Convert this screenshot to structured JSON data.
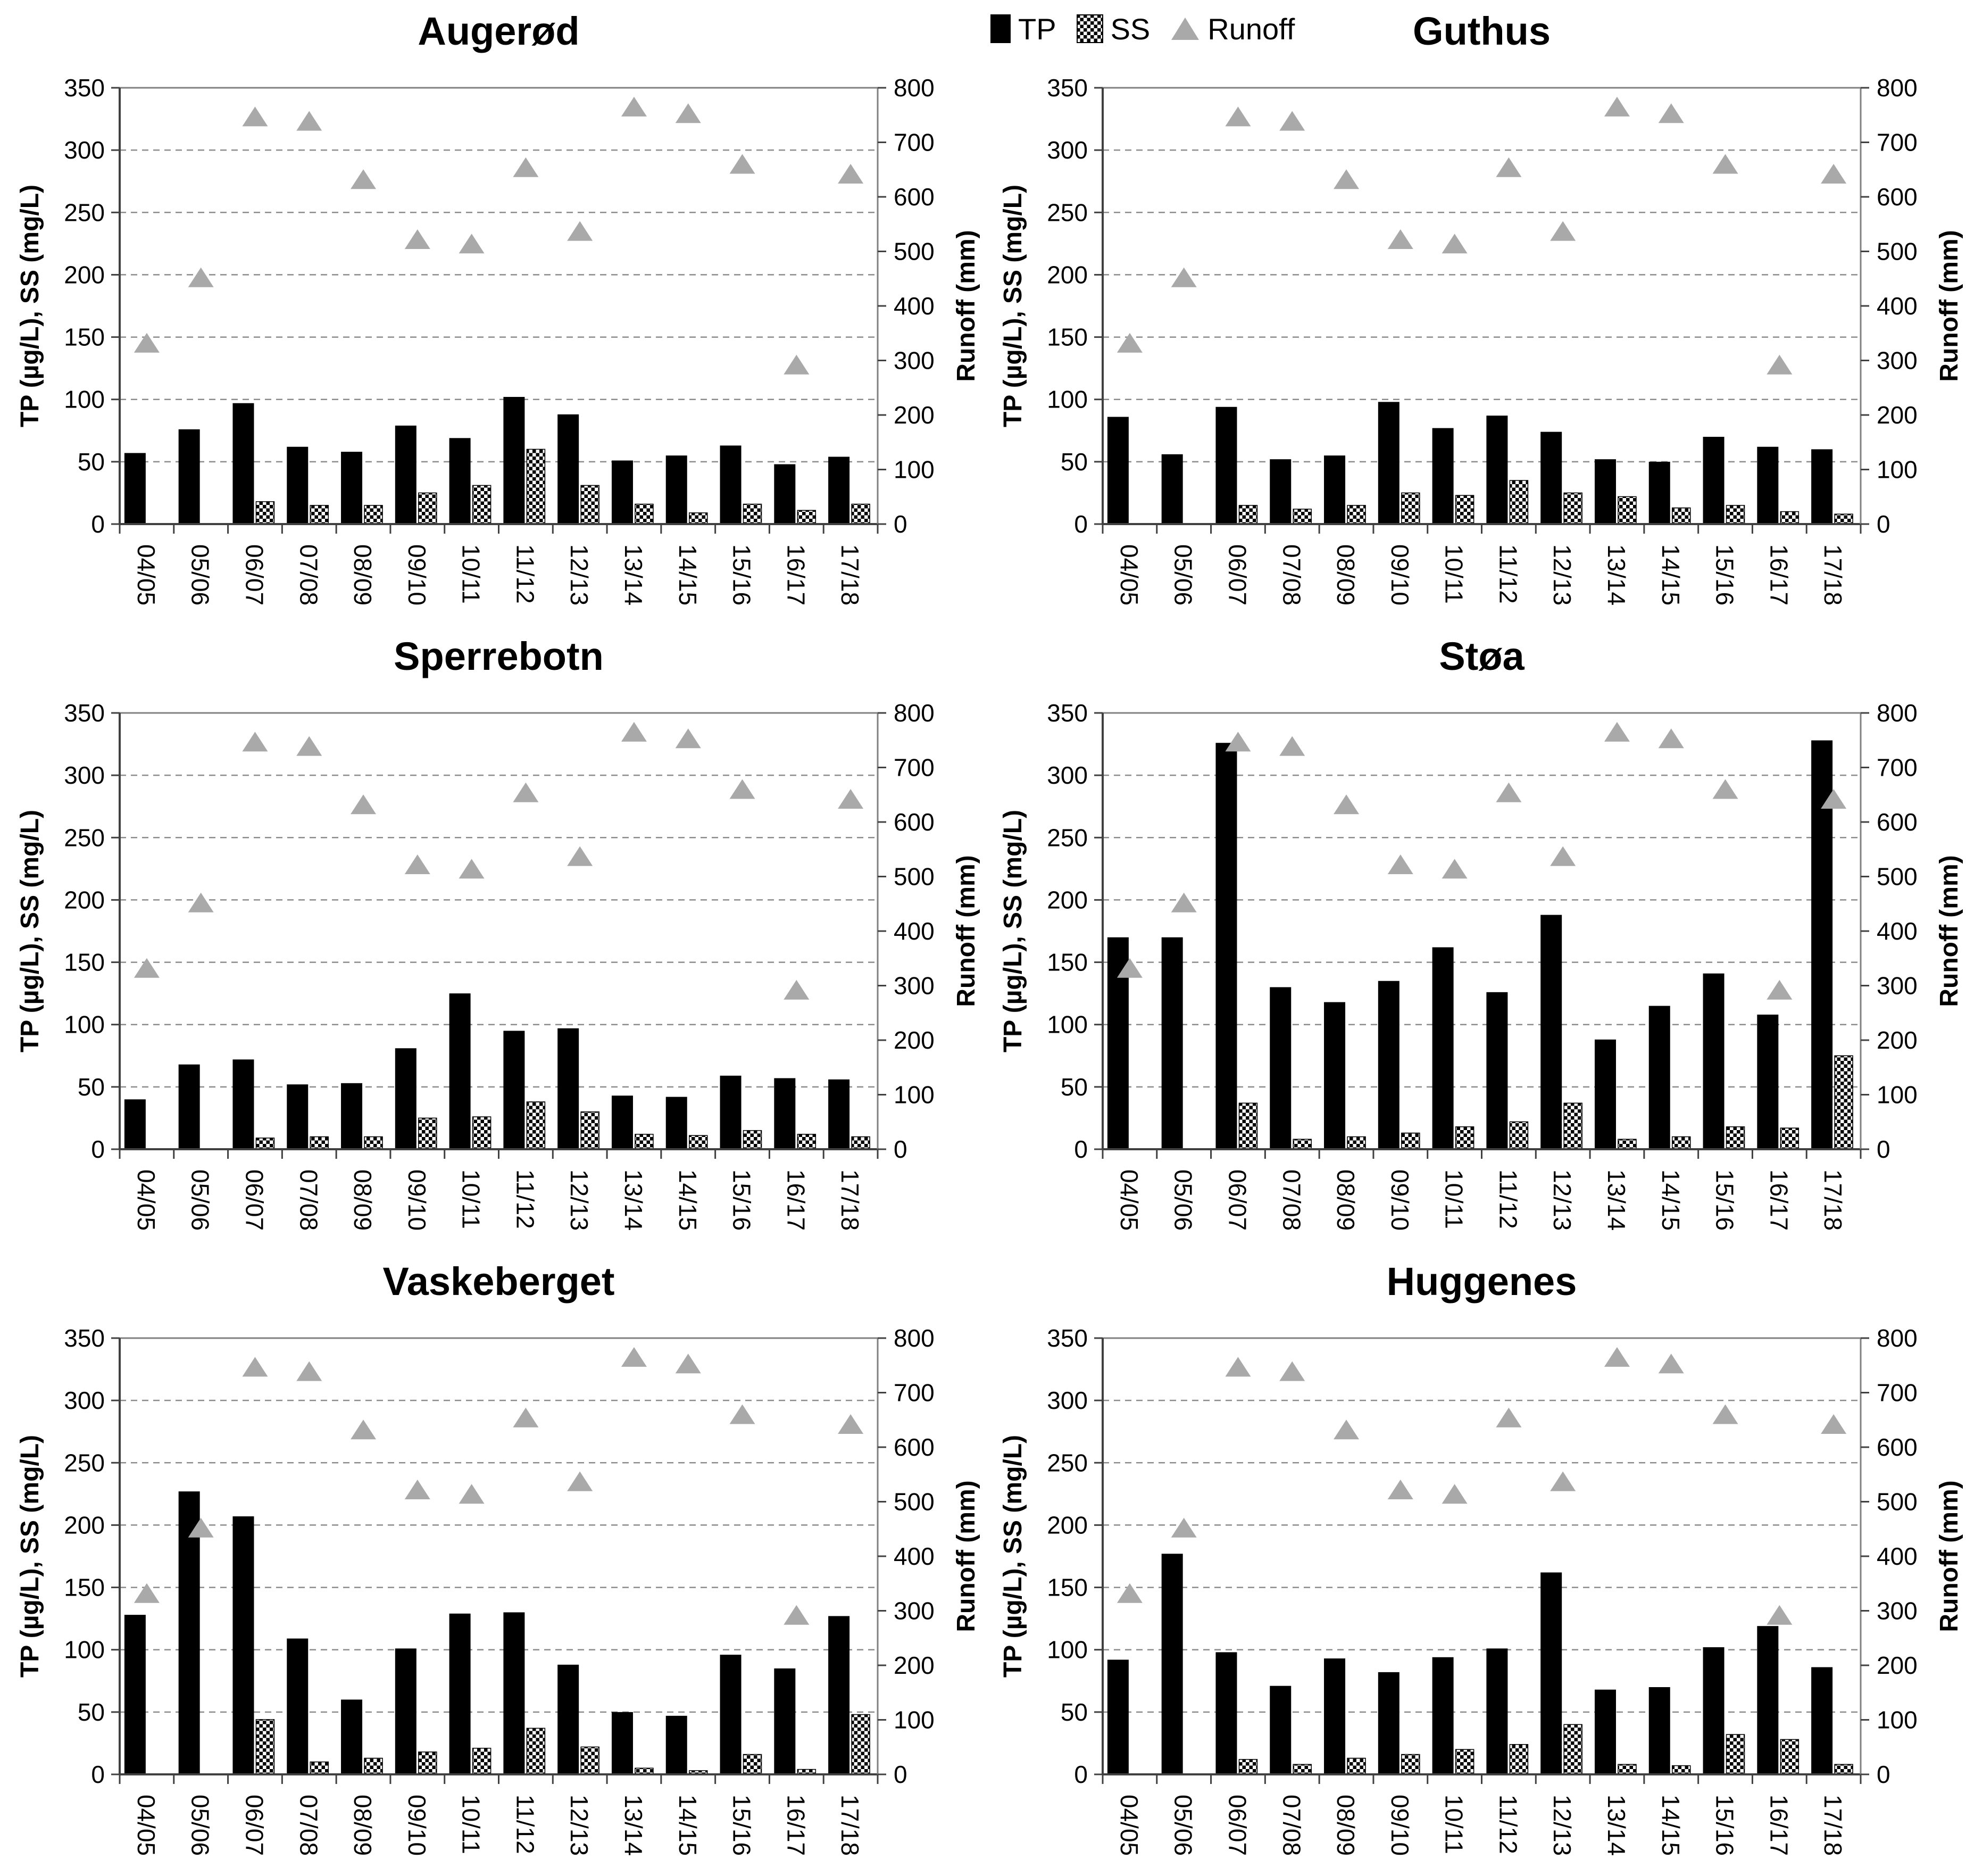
{
  "legend": {
    "tp": "TP",
    "ss": "SS",
    "runoff": "Runoff"
  },
  "colors": {
    "tp": "#000000",
    "ss_fill": "black-white-checker",
    "runoff": "#a9a9a9",
    "grid": "#8c8c8c",
    "frame": "#808080",
    "axis": "#404040",
    "text": "#000000"
  },
  "axes": {
    "left_label": "TP (µg/L), SS (mg/L)",
    "right_label": "Runoff (mm)",
    "left_max": 350,
    "right_max": 800,
    "left_ticks": [
      0,
      50,
      100,
      150,
      200,
      250,
      300,
      350
    ],
    "right_ticks": [
      0,
      100,
      200,
      300,
      400,
      500,
      600,
      700,
      800
    ],
    "grid": "dashed-horizontal"
  },
  "chart_data": [
    {
      "type": "bar",
      "title": "Augerød",
      "categories": [
        "04/05",
        "05/06",
        "06/07",
        "07/08",
        "08/09",
        "09/10",
        "10/11",
        "11/12",
        "12/13",
        "13/14",
        "14/15",
        "15/16",
        "16/17",
        "17/18"
      ],
      "ylim_left": [
        0,
        350
      ],
      "ylim_right": [
        0,
        800
      ],
      "legend_position": "top-center",
      "series": [
        {
          "name": "TP",
          "unit": "µg/L",
          "kind": "bar",
          "axis": "left",
          "values": [
            57,
            76,
            97,
            62,
            58,
            79,
            69,
            102,
            88,
            51,
            55,
            63,
            48,
            54
          ]
        },
        {
          "name": "SS",
          "unit": "mg/L",
          "kind": "bar",
          "axis": "left",
          "values": [
            null,
            null,
            18,
            15,
            15,
            25,
            31,
            60,
            31,
            16,
            9,
            16,
            11,
            16
          ]
        },
        {
          "name": "Runoff",
          "unit": "mm",
          "kind": "scatter",
          "axis": "right",
          "values": [
            330,
            450,
            745,
            737,
            630,
            520,
            512,
            652,
            535,
            763,
            751,
            658,
            290,
            640
          ]
        }
      ]
    },
    {
      "type": "bar",
      "title": "Guthus",
      "categories": [
        "04/05",
        "05/06",
        "06/07",
        "07/08",
        "08/09",
        "09/10",
        "10/11",
        "11/12",
        "12/13",
        "13/14",
        "14/15",
        "15/16",
        "16/17",
        "17/18"
      ],
      "ylim_left": [
        0,
        350
      ],
      "ylim_right": [
        0,
        800
      ],
      "series": [
        {
          "name": "TP",
          "unit": "µg/L",
          "kind": "bar",
          "axis": "left",
          "values": [
            86,
            56,
            94,
            52,
            55,
            98,
            77,
            87,
            74,
            52,
            50,
            70,
            62,
            60
          ]
        },
        {
          "name": "SS",
          "unit": "mg/L",
          "kind": "bar",
          "axis": "left",
          "values": [
            null,
            null,
            15,
            12,
            15,
            25,
            23,
            35,
            25,
            22,
            13,
            15,
            10,
            8
          ]
        },
        {
          "name": "Runoff",
          "unit": "mm",
          "kind": "scatter",
          "axis": "right",
          "values": [
            330,
            450,
            745,
            737,
            630,
            520,
            512,
            652,
            535,
            763,
            751,
            658,
            290,
            640
          ]
        }
      ]
    },
    {
      "type": "bar",
      "title": "Sperrebotn",
      "categories": [
        "04/05",
        "05/06",
        "06/07",
        "07/08",
        "08/09",
        "09/10",
        "10/11",
        "11/12",
        "12/13",
        "13/14",
        "14/15",
        "15/16",
        "16/17",
        "17/18"
      ],
      "ylim_left": [
        0,
        350
      ],
      "ylim_right": [
        0,
        800
      ],
      "series": [
        {
          "name": "TP",
          "unit": "µg/L",
          "kind": "bar",
          "axis": "left",
          "values": [
            40,
            68,
            72,
            52,
            53,
            81,
            125,
            95,
            97,
            43,
            42,
            59,
            57,
            56
          ]
        },
        {
          "name": "SS",
          "unit": "mg/L",
          "kind": "bar",
          "axis": "left",
          "values": [
            null,
            null,
            9,
            10,
            10,
            25,
            26,
            38,
            30,
            12,
            11,
            15,
            12,
            10
          ]
        },
        {
          "name": "Runoff",
          "unit": "mm",
          "kind": "scatter",
          "axis": "right",
          "values": [
            330,
            450,
            745,
            737,
            630,
            520,
            512,
            652,
            535,
            763,
            751,
            658,
            290,
            640
          ]
        }
      ]
    },
    {
      "type": "bar",
      "title": "Støa",
      "categories": [
        "04/05",
        "05/06",
        "06/07",
        "07/08",
        "08/09",
        "09/10",
        "10/11",
        "11/12",
        "12/13",
        "13/14",
        "14/15",
        "15/16",
        "16/17",
        "17/18"
      ],
      "ylim_left": [
        0,
        350
      ],
      "ylim_right": [
        0,
        800
      ],
      "series": [
        {
          "name": "TP",
          "unit": "µg/L",
          "kind": "bar",
          "axis": "left",
          "values": [
            170,
            170,
            326,
            130,
            118,
            135,
            162,
            126,
            188,
            88,
            115,
            141,
            108,
            328
          ]
        },
        {
          "name": "SS",
          "unit": "mg/L",
          "kind": "bar",
          "axis": "left",
          "values": [
            null,
            null,
            37,
            8,
            10,
            13,
            18,
            22,
            37,
            8,
            10,
            18,
            17,
            75
          ]
        },
        {
          "name": "Runoff",
          "unit": "mm",
          "kind": "scatter",
          "axis": "right",
          "values": [
            330,
            450,
            745,
            737,
            630,
            520,
            512,
            652,
            535,
            763,
            751,
            658,
            290,
            640
          ]
        }
      ]
    },
    {
      "type": "bar",
      "title": "Vaskeberget",
      "categories": [
        "04/05",
        "05/06",
        "06/07",
        "07/08",
        "08/09",
        "09/10",
        "10/11",
        "11/12",
        "12/13",
        "13/14",
        "14/15",
        "15/16",
        "16/17",
        "17/18"
      ],
      "ylim_left": [
        0,
        350
      ],
      "ylim_right": [
        0,
        800
      ],
      "series": [
        {
          "name": "TP",
          "unit": "µg/L",
          "kind": "bar",
          "axis": "left",
          "values": [
            128,
            227,
            207,
            109,
            60,
            101,
            129,
            130,
            88,
            50,
            47,
            96,
            85,
            127
          ]
        },
        {
          "name": "SS",
          "unit": "mg/L",
          "kind": "bar",
          "axis": "left",
          "values": [
            null,
            null,
            44,
            10,
            13,
            18,
            21,
            37,
            22,
            5,
            3,
            16,
            4,
            48
          ]
        },
        {
          "name": "Runoff",
          "unit": "mm",
          "kind": "scatter",
          "axis": "right",
          "values": [
            330,
            450,
            745,
            737,
            630,
            520,
            512,
            652,
            535,
            763,
            751,
            658,
            290,
            640
          ]
        }
      ]
    },
    {
      "type": "bar",
      "title": "Huggenes",
      "categories": [
        "04/05",
        "05/06",
        "06/07",
        "07/08",
        "08/09",
        "09/10",
        "10/11",
        "11/12",
        "12/13",
        "13/14",
        "14/15",
        "15/16",
        "16/17",
        "17/18"
      ],
      "ylim_left": [
        0,
        350
      ],
      "ylim_right": [
        0,
        800
      ],
      "series": [
        {
          "name": "TP",
          "unit": "µg/L",
          "kind": "bar",
          "axis": "left",
          "values": [
            92,
            177,
            98,
            71,
            93,
            82,
            94,
            101,
            162,
            68,
            70,
            102,
            119,
            86
          ]
        },
        {
          "name": "SS",
          "unit": "mg/L",
          "kind": "bar",
          "axis": "left",
          "values": [
            null,
            null,
            12,
            8,
            13,
            16,
            20,
            24,
            40,
            8,
            7,
            32,
            28,
            8
          ]
        },
        {
          "name": "Runoff",
          "unit": "mm",
          "kind": "scatter",
          "axis": "right",
          "values": [
            330,
            450,
            745,
            737,
            630,
            520,
            512,
            652,
            535,
            763,
            751,
            658,
            290,
            640
          ]
        }
      ]
    }
  ]
}
